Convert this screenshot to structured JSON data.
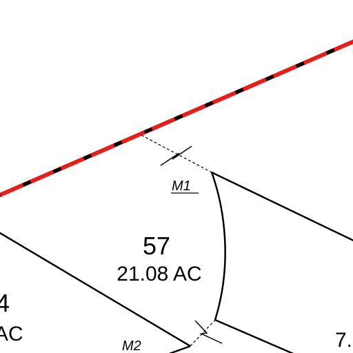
{
  "map": {
    "colors": {
      "background": "#ffffff",
      "boundary_line": "#000000",
      "highlight_line": "#e3201b",
      "highlight_dash": "#000000",
      "tie_line": "#000000"
    },
    "parcels": [
      {
        "number": "57",
        "area": "21.08 AC"
      },
      {
        "number": "4",
        "area": "AC"
      },
      {
        "number": "7."
      }
    ],
    "markers": {
      "m1": "M1",
      "m2": "M2"
    }
  }
}
